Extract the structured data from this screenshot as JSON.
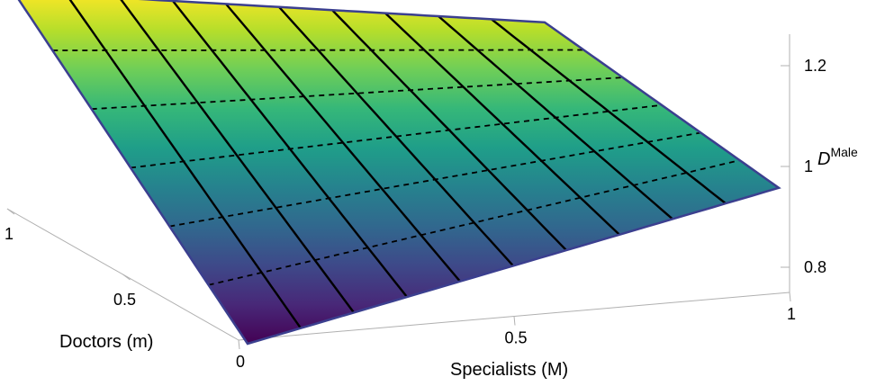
{
  "chart_data": {
    "type": "surface3d",
    "title": "",
    "x_axis": {
      "label": "Specialists (M)",
      "range": [
        0,
        1
      ],
      "ticks": [
        0,
        0.5,
        1
      ],
      "tick_labels": [
        "0",
        "0.5",
        "1"
      ]
    },
    "y_axis": {
      "label": "Doctors (m)",
      "range": [
        0,
        1
      ],
      "ticks": [
        0.5,
        1
      ],
      "tick_labels": [
        "0.5",
        "1"
      ]
    },
    "z_axis": {
      "label_base": "D",
      "label_sup": "Male",
      "range": [
        0.8,
        1.25
      ],
      "ticks": [
        0.8,
        1,
        1.2
      ],
      "tick_labels": [
        "0.8",
        "1",
        "1.2"
      ]
    },
    "corner_values": {
      "M0_m0": 0.78,
      "M1_m0": 1.0,
      "M0_m1": 1.25,
      "M1_m1": 1.1
    },
    "mesh": {
      "solid_lines_along": "Doctors (m)",
      "solid_count": 9,
      "dashed_lines_along": "Specialists (M)",
      "dashed_count": 5
    },
    "colormap": [
      "#fde725",
      "#b5de2b",
      "#6ece58",
      "#35b779",
      "#1f9e89",
      "#26828e",
      "#31688e",
      "#3e4989",
      "#482878",
      "#440154"
    ],
    "grid": false,
    "legend": false
  }
}
